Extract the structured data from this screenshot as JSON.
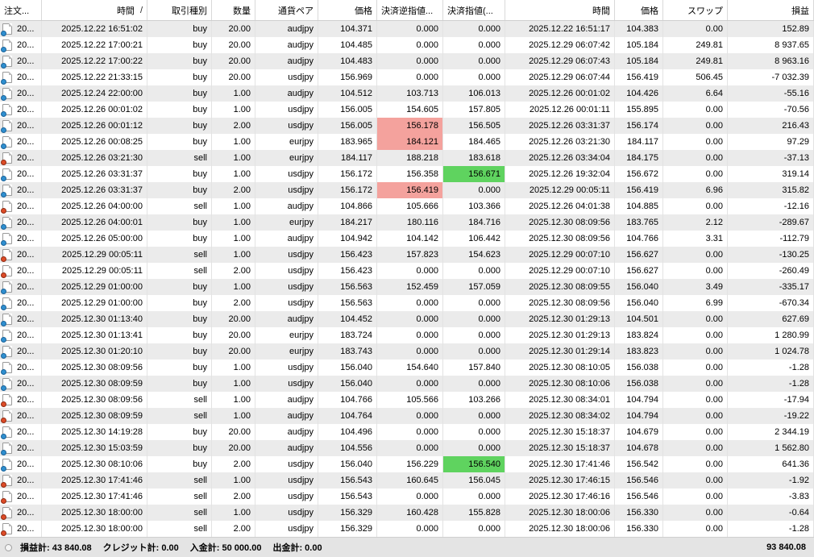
{
  "colors": {
    "sl_highlight": "#f4a29d",
    "tp_highlight": "#5fd35f",
    "buy_icon": "#2f8fd0",
    "sell_icon": "#dd4b27",
    "row_alt": "#ebebeb"
  },
  "table": {
    "columns": [
      {
        "label": "注文..."
      },
      {
        "label": "時間",
        "sort_indicator": "/"
      },
      {
        "label": "取引種別"
      },
      {
        "label": "数量"
      },
      {
        "label": "通貨ペア"
      },
      {
        "label": "価格"
      },
      {
        "label": "決済逆指値..."
      },
      {
        "label": "決済指値(..."
      },
      {
        "label": "時間"
      },
      {
        "label": "価格"
      },
      {
        "label": "スワップ"
      },
      {
        "label": "損益"
      }
    ],
    "rows": [
      {
        "order": "20...",
        "open_time": "2025.12.22 16:51:02",
        "type": "buy",
        "volume": "20.00",
        "pair": "audjpy",
        "price": "104.371",
        "sl": "0.000",
        "tp": "0.000",
        "sl_hl": false,
        "tp_hl": false,
        "close_time": "2025.12.22 16:51:17",
        "close_price": "104.383",
        "swap": "0.00",
        "profit": "152.89"
      },
      {
        "order": "20...",
        "open_time": "2025.12.22 17:00:21",
        "type": "buy",
        "volume": "20.00",
        "pair": "audjpy",
        "price": "104.485",
        "sl": "0.000",
        "tp": "0.000",
        "sl_hl": false,
        "tp_hl": false,
        "close_time": "2025.12.29 06:07:42",
        "close_price": "105.184",
        "swap": "249.81",
        "profit": "8 937.65"
      },
      {
        "order": "20...",
        "open_time": "2025.12.22 17:00:22",
        "type": "buy",
        "volume": "20.00",
        "pair": "audjpy",
        "price": "104.483",
        "sl": "0.000",
        "tp": "0.000",
        "sl_hl": false,
        "tp_hl": false,
        "close_time": "2025.12.29 06:07:43",
        "close_price": "105.184",
        "swap": "249.81",
        "profit": "8 963.16"
      },
      {
        "order": "20...",
        "open_time": "2025.12.22 21:33:15",
        "type": "buy",
        "volume": "20.00",
        "pair": "usdjpy",
        "price": "156.969",
        "sl": "0.000",
        "tp": "0.000",
        "sl_hl": false,
        "tp_hl": false,
        "close_time": "2025.12.29 06:07:44",
        "close_price": "156.419",
        "swap": "506.45",
        "profit": "-7 032.39"
      },
      {
        "order": "20...",
        "open_time": "2025.12.24 22:00:00",
        "type": "buy",
        "volume": "1.00",
        "pair": "audjpy",
        "price": "104.512",
        "sl": "103.713",
        "tp": "106.013",
        "sl_hl": false,
        "tp_hl": false,
        "close_time": "2025.12.26 00:01:02",
        "close_price": "104.426",
        "swap": "6.64",
        "profit": "-55.16"
      },
      {
        "order": "20...",
        "open_time": "2025.12.26 00:01:02",
        "type": "buy",
        "volume": "1.00",
        "pair": "usdjpy",
        "price": "156.005",
        "sl": "154.605",
        "tp": "157.805",
        "sl_hl": false,
        "tp_hl": false,
        "close_time": "2025.12.26 00:01:11",
        "close_price": "155.895",
        "swap": "0.00",
        "profit": "-70.56"
      },
      {
        "order": "20...",
        "open_time": "2025.12.26 00:01:12",
        "type": "buy",
        "volume": "2.00",
        "pair": "usdjpy",
        "price": "156.005",
        "sl": "156.178",
        "tp": "156.505",
        "sl_hl": true,
        "tp_hl": false,
        "close_time": "2025.12.26 03:31:37",
        "close_price": "156.174",
        "swap": "0.00",
        "profit": "216.43"
      },
      {
        "order": "20...",
        "open_time": "2025.12.26 00:08:25",
        "type": "buy",
        "volume": "1.00",
        "pair": "eurjpy",
        "price": "183.965",
        "sl": "184.121",
        "tp": "184.465",
        "sl_hl": true,
        "tp_hl": false,
        "close_time": "2025.12.26 03:21:30",
        "close_price": "184.117",
        "swap": "0.00",
        "profit": "97.29"
      },
      {
        "order": "20...",
        "open_time": "2025.12.26 03:21:30",
        "type": "sell",
        "volume": "1.00",
        "pair": "eurjpy",
        "price": "184.117",
        "sl": "188.218",
        "tp": "183.618",
        "sl_hl": false,
        "tp_hl": false,
        "close_time": "2025.12.26 03:34:04",
        "close_price": "184.175",
        "swap": "0.00",
        "profit": "-37.13"
      },
      {
        "order": "20...",
        "open_time": "2025.12.26 03:31:37",
        "type": "buy",
        "volume": "1.00",
        "pair": "usdjpy",
        "price": "156.172",
        "sl": "156.358",
        "tp": "156.671",
        "sl_hl": false,
        "tp_hl": true,
        "close_time": "2025.12.26 19:32:04",
        "close_price": "156.672",
        "swap": "0.00",
        "profit": "319.14"
      },
      {
        "order": "20...",
        "open_time": "2025.12.26 03:31:37",
        "type": "buy",
        "volume": "2.00",
        "pair": "usdjpy",
        "price": "156.172",
        "sl": "156.419",
        "tp": "0.000",
        "sl_hl": true,
        "tp_hl": false,
        "close_time": "2025.12.29 00:05:11",
        "close_price": "156.419",
        "swap": "6.96",
        "profit": "315.82"
      },
      {
        "order": "20...",
        "open_time": "2025.12.26 04:00:00",
        "type": "sell",
        "volume": "1.00",
        "pair": "audjpy",
        "price": "104.866",
        "sl": "105.666",
        "tp": "103.366",
        "sl_hl": false,
        "tp_hl": false,
        "close_time": "2025.12.26 04:01:38",
        "close_price": "104.885",
        "swap": "0.00",
        "profit": "-12.16"
      },
      {
        "order": "20...",
        "open_time": "2025.12.26 04:00:01",
        "type": "buy",
        "volume": "1.00",
        "pair": "eurjpy",
        "price": "184.217",
        "sl": "180.116",
        "tp": "184.716",
        "sl_hl": false,
        "tp_hl": false,
        "close_time": "2025.12.30 08:09:56",
        "close_price": "183.765",
        "swap": "2.12",
        "profit": "-289.67"
      },
      {
        "order": "20...",
        "open_time": "2025.12.26 05:00:00",
        "type": "buy",
        "volume": "1.00",
        "pair": "audjpy",
        "price": "104.942",
        "sl": "104.142",
        "tp": "106.442",
        "sl_hl": false,
        "tp_hl": false,
        "close_time": "2025.12.30 08:09:56",
        "close_price": "104.766",
        "swap": "3.31",
        "profit": "-112.79"
      },
      {
        "order": "20...",
        "open_time": "2025.12.29 00:05:11",
        "type": "sell",
        "volume": "1.00",
        "pair": "usdjpy",
        "price": "156.423",
        "sl": "157.823",
        "tp": "154.623",
        "sl_hl": false,
        "tp_hl": false,
        "close_time": "2025.12.29 00:07:10",
        "close_price": "156.627",
        "swap": "0.00",
        "profit": "-130.25"
      },
      {
        "order": "20...",
        "open_time": "2025.12.29 00:05:11",
        "type": "sell",
        "volume": "2.00",
        "pair": "usdjpy",
        "price": "156.423",
        "sl": "0.000",
        "tp": "0.000",
        "sl_hl": false,
        "tp_hl": false,
        "close_time": "2025.12.29 00:07:10",
        "close_price": "156.627",
        "swap": "0.00",
        "profit": "-260.49"
      },
      {
        "order": "20...",
        "open_time": "2025.12.29 01:00:00",
        "type": "buy",
        "volume": "1.00",
        "pair": "usdjpy",
        "price": "156.563",
        "sl": "152.459",
        "tp": "157.059",
        "sl_hl": false,
        "tp_hl": false,
        "close_time": "2025.12.30 08:09:55",
        "close_price": "156.040",
        "swap": "3.49",
        "profit": "-335.17"
      },
      {
        "order": "20...",
        "open_time": "2025.12.29 01:00:00",
        "type": "buy",
        "volume": "2.00",
        "pair": "usdjpy",
        "price": "156.563",
        "sl": "0.000",
        "tp": "0.000",
        "sl_hl": false,
        "tp_hl": false,
        "close_time": "2025.12.30 08:09:56",
        "close_price": "156.040",
        "swap": "6.99",
        "profit": "-670.34"
      },
      {
        "order": "20...",
        "open_time": "2025.12.30 01:13:40",
        "type": "buy",
        "volume": "20.00",
        "pair": "audjpy",
        "price": "104.452",
        "sl": "0.000",
        "tp": "0.000",
        "sl_hl": false,
        "tp_hl": false,
        "close_time": "2025.12.30 01:29:13",
        "close_price": "104.501",
        "swap": "0.00",
        "profit": "627.69"
      },
      {
        "order": "20...",
        "open_time": "2025.12.30 01:13:41",
        "type": "buy",
        "volume": "20.00",
        "pair": "eurjpy",
        "price": "183.724",
        "sl": "0.000",
        "tp": "0.000",
        "sl_hl": false,
        "tp_hl": false,
        "close_time": "2025.12.30 01:29:13",
        "close_price": "183.824",
        "swap": "0.00",
        "profit": "1 280.99"
      },
      {
        "order": "20...",
        "open_time": "2025.12.30 01:20:10",
        "type": "buy",
        "volume": "20.00",
        "pair": "eurjpy",
        "price": "183.743",
        "sl": "0.000",
        "tp": "0.000",
        "sl_hl": false,
        "tp_hl": false,
        "close_time": "2025.12.30 01:29:14",
        "close_price": "183.823",
        "swap": "0.00",
        "profit": "1 024.78"
      },
      {
        "order": "20...",
        "open_time": "2025.12.30 08:09:56",
        "type": "buy",
        "volume": "1.00",
        "pair": "usdjpy",
        "price": "156.040",
        "sl": "154.640",
        "tp": "157.840",
        "sl_hl": false,
        "tp_hl": false,
        "close_time": "2025.12.30 08:10:05",
        "close_price": "156.038",
        "swap": "0.00",
        "profit": "-1.28"
      },
      {
        "order": "20...",
        "open_time": "2025.12.30 08:09:59",
        "type": "buy",
        "volume": "1.00",
        "pair": "usdjpy",
        "price": "156.040",
        "sl": "0.000",
        "tp": "0.000",
        "sl_hl": false,
        "tp_hl": false,
        "close_time": "2025.12.30 08:10:06",
        "close_price": "156.038",
        "swap": "0.00",
        "profit": "-1.28"
      },
      {
        "order": "20...",
        "open_time": "2025.12.30 08:09:56",
        "type": "sell",
        "volume": "1.00",
        "pair": "audjpy",
        "price": "104.766",
        "sl": "105.566",
        "tp": "103.266",
        "sl_hl": false,
        "tp_hl": false,
        "close_time": "2025.12.30 08:34:01",
        "close_price": "104.794",
        "swap": "0.00",
        "profit": "-17.94"
      },
      {
        "order": "20...",
        "open_time": "2025.12.30 08:09:59",
        "type": "sell",
        "volume": "1.00",
        "pair": "audjpy",
        "price": "104.764",
        "sl": "0.000",
        "tp": "0.000",
        "sl_hl": false,
        "tp_hl": false,
        "close_time": "2025.12.30 08:34:02",
        "close_price": "104.794",
        "swap": "0.00",
        "profit": "-19.22"
      },
      {
        "order": "20...",
        "open_time": "2025.12.30 14:19:28",
        "type": "buy",
        "volume": "20.00",
        "pair": "audjpy",
        "price": "104.496",
        "sl": "0.000",
        "tp": "0.000",
        "sl_hl": false,
        "tp_hl": false,
        "close_time": "2025.12.30 15:18:37",
        "close_price": "104.679",
        "swap": "0.00",
        "profit": "2 344.19"
      },
      {
        "order": "20...",
        "open_time": "2025.12.30 15:03:59",
        "type": "buy",
        "volume": "20.00",
        "pair": "audjpy",
        "price": "104.556",
        "sl": "0.000",
        "tp": "0.000",
        "sl_hl": false,
        "tp_hl": false,
        "close_time": "2025.12.30 15:18:37",
        "close_price": "104.678",
        "swap": "0.00",
        "profit": "1 562.80"
      },
      {
        "order": "20...",
        "open_time": "2025.12.30 08:10:06",
        "type": "buy",
        "volume": "2.00",
        "pair": "usdjpy",
        "price": "156.040",
        "sl": "156.229",
        "tp": "156.540",
        "sl_hl": false,
        "tp_hl": true,
        "close_time": "2025.12.30 17:41:46",
        "close_price": "156.542",
        "swap": "0.00",
        "profit": "641.36"
      },
      {
        "order": "20...",
        "open_time": "2025.12.30 17:41:46",
        "type": "sell",
        "volume": "1.00",
        "pair": "usdjpy",
        "price": "156.543",
        "sl": "160.645",
        "tp": "156.045",
        "sl_hl": false,
        "tp_hl": false,
        "close_time": "2025.12.30 17:46:15",
        "close_price": "156.546",
        "swap": "0.00",
        "profit": "-1.92"
      },
      {
        "order": "20...",
        "open_time": "2025.12.30 17:41:46",
        "type": "sell",
        "volume": "2.00",
        "pair": "usdjpy",
        "price": "156.543",
        "sl": "0.000",
        "tp": "0.000",
        "sl_hl": false,
        "tp_hl": false,
        "close_time": "2025.12.30 17:46:16",
        "close_price": "156.546",
        "swap": "0.00",
        "profit": "-3.83"
      },
      {
        "order": "20...",
        "open_time": "2025.12.30 18:00:00",
        "type": "sell",
        "volume": "1.00",
        "pair": "usdjpy",
        "price": "156.329",
        "sl": "160.428",
        "tp": "155.828",
        "sl_hl": false,
        "tp_hl": false,
        "close_time": "2025.12.30 18:00:06",
        "close_price": "156.330",
        "swap": "0.00",
        "profit": "-0.64"
      },
      {
        "order": "20...",
        "open_time": "2025.12.30 18:00:00",
        "type": "sell",
        "volume": "2.00",
        "pair": "usdjpy",
        "price": "156.329",
        "sl": "0.000",
        "tp": "0.000",
        "sl_hl": false,
        "tp_hl": false,
        "close_time": "2025.12.30 18:00:06",
        "close_price": "156.330",
        "swap": "0.00",
        "profit": "-1.28"
      }
    ]
  },
  "status_bar": {
    "summary": [
      {
        "label": "損益計:",
        "value": "43 840.08"
      },
      {
        "label": "クレジット計:",
        "value": "0.00"
      },
      {
        "label": "入金計:",
        "value": "50 000.00"
      },
      {
        "label": "出金計:",
        "value": "0.00"
      }
    ],
    "total": "93 840.08"
  }
}
